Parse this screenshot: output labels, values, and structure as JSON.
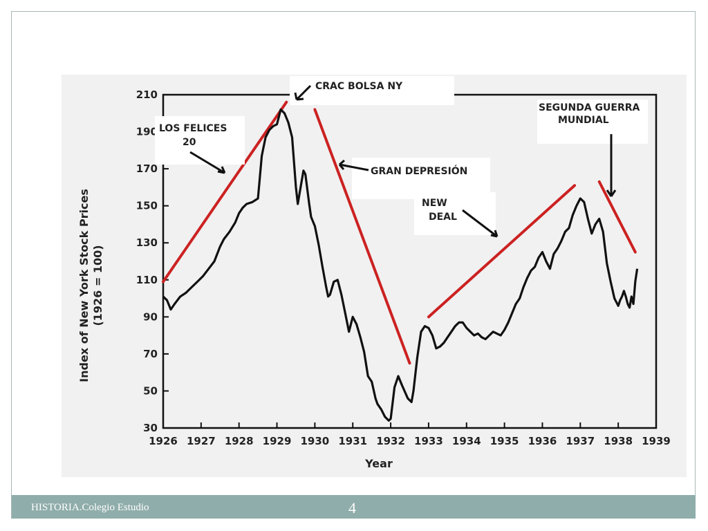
{
  "footer": {
    "text": "HISTORIA.Colegio Estudio",
    "slide_number": "4"
  },
  "colors": {
    "data_line": "#111111",
    "trend": "#cc2222",
    "footer": "#8fadab"
  },
  "chart_data": {
    "type": "line",
    "ylabel_line1": "Index of New York Stock Prices",
    "ylabel_line2": "(1926 = 100)",
    "xlabel": "Year",
    "xlim": [
      1926,
      1939
    ],
    "ylim": [
      30,
      210
    ],
    "x_ticks": [
      "1926",
      "1927",
      "1928",
      "1929",
      "1930",
      "1931",
      "1932",
      "1933",
      "1934",
      "1935",
      "1936",
      "1937",
      "1938",
      "1939"
    ],
    "y_ticks": [
      "30",
      "50",
      "70",
      "90",
      "110",
      "130",
      "150",
      "170",
      "190",
      "210"
    ],
    "series": [
      {
        "x": [
          1926.0,
          1926.1,
          1926.2,
          1926.3,
          1926.45,
          1926.6,
          1926.75,
          1926.9,
          1927.05,
          1927.2,
          1927.35,
          1927.5,
          1927.6,
          1927.75,
          1927.9,
          1928.0,
          1928.1,
          1928.2,
          1928.35,
          1928.5,
          1928.6,
          1928.7,
          1928.8,
          1928.9,
          1929.0,
          1929.05,
          1929.1,
          1929.2,
          1929.3,
          1929.4,
          1929.5,
          1929.55,
          1929.6,
          1929.7,
          1929.75,
          1929.85,
          1929.9,
          1930.0,
          1930.1,
          1930.2,
          1930.3,
          1930.35,
          1930.4,
          1930.5,
          1930.6,
          1930.7,
          1930.8,
          1930.9,
          1931.0,
          1931.1,
          1931.2,
          1931.3,
          1931.4,
          1931.5,
          1931.6,
          1931.65,
          1931.75,
          1931.85,
          1931.95,
          1932.0,
          1932.1,
          1932.2,
          1932.3,
          1932.45,
          1932.55,
          1932.6,
          1932.7,
          1932.8,
          1932.9,
          1933.0,
          1933.1,
          1933.2,
          1933.3,
          1933.4,
          1933.5,
          1933.6,
          1933.7,
          1933.8,
          1933.9,
          1934.0,
          1934.1,
          1934.2,
          1934.3,
          1934.4,
          1934.5,
          1934.6,
          1934.7,
          1934.8,
          1934.9,
          1935.0,
          1935.1,
          1935.2,
          1935.3,
          1935.4,
          1935.5,
          1935.6,
          1935.7,
          1935.8,
          1935.9,
          1936.0,
          1936.1,
          1936.2,
          1936.3,
          1936.4,
          1936.5,
          1936.6,
          1936.7,
          1936.8,
          1936.9,
          1937.0,
          1937.1,
          1937.2,
          1937.3,
          1937.4,
          1937.5,
          1937.6,
          1937.7,
          1937.8,
          1937.9,
          1938.0,
          1938.05,
          1938.1,
          1938.15,
          1938.2,
          1938.25,
          1938.3,
          1938.35,
          1938.4,
          1938.45,
          1938.5
        ],
        "y": [
          101,
          99,
          94,
          97,
          101,
          103,
          106,
          109,
          112,
          116,
          120,
          128,
          132,
          136,
          141,
          146,
          149,
          151,
          152,
          154,
          177,
          187,
          191,
          193,
          194,
          198,
          202,
          200,
          195,
          187,
          160,
          151,
          157,
          169,
          167,
          151,
          144,
          139,
          129,
          117,
          106,
          101,
          102,
          109,
          110,
          102,
          92,
          82,
          90,
          86,
          79,
          71,
          58,
          55,
          46,
          43,
          40,
          36,
          34,
          35,
          52,
          58,
          53,
          46,
          44,
          50,
          68,
          82,
          85,
          84,
          80,
          73,
          74,
          76,
          79,
          82,
          85,
          87,
          87,
          84,
          82,
          80,
          81,
          79,
          78,
          80,
          82,
          81,
          80,
          83,
          87,
          92,
          97,
          100,
          106,
          111,
          115,
          117,
          122,
          125,
          120,
          116,
          124,
          127,
          131,
          136,
          138,
          145,
          150,
          154,
          152,
          143,
          135,
          140,
          143,
          136,
          119,
          109,
          100,
          96,
          99,
          101,
          104,
          101,
          97,
          95,
          101,
          97,
          109,
          116
        ]
      }
    ],
    "trend_lines": [
      {
        "x": [
          1926.0,
          1929.25
        ],
        "y": [
          109,
          206
        ]
      },
      {
        "x": [
          1930.0,
          1932.5
        ],
        "y": [
          202,
          65
        ]
      },
      {
        "x": [
          1933.0,
          1936.85
        ],
        "y": [
          90,
          161
        ]
      },
      {
        "x": [
          1937.5,
          1938.45
        ],
        "y": [
          163,
          125
        ]
      }
    ],
    "annotations": [
      {
        "text": "CRAC BOLSA NY"
      },
      {
        "text_line1": "LOS FELICES",
        "text_line2": "20"
      },
      {
        "text": "GRAN DEPRESIÓN"
      },
      {
        "text_line1": "NEW",
        "text_line2": "DEAL"
      },
      {
        "text_line1": "SEGUNDA GUERRA",
        "text_line2": "MUNDIAL"
      }
    ]
  }
}
